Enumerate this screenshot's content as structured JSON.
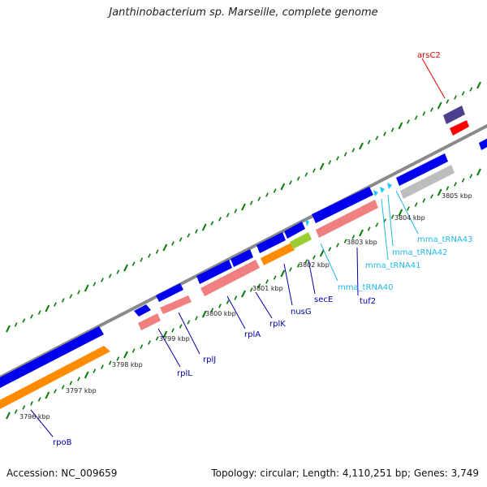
{
  "title": "Janthinobacterium sp. Marseille, complete genome",
  "footer": {
    "accession": "Accession: NC_009659",
    "summary": "Topology: circular; Length: 4,110,251 bp; Genes: 3,749"
  },
  "colors": {
    "cds_forward": "#0000ee",
    "rrna_like": "#f08080",
    "orange": "#ff8c00",
    "gray": "#bdbdbd",
    "lime": "#9acd32",
    "red": "#ff0000",
    "purple": "#4b3f8f",
    "trna": "#1ec8f0",
    "tick": "#0a7a0a",
    "label_blue": "#0000aa",
    "label_cyan": "#22b8e6",
    "label_red": "#dd0000"
  },
  "scale_labels": [
    "3796 kbp",
    "3797 kbp",
    "3798 kbp",
    "3799 kbp",
    "3800 kbp",
    "3801 kbp",
    "3802 kbp",
    "3803 kbp",
    "3804 kbp",
    "3805 kbp"
  ],
  "gene_labels": [
    "rpoB",
    "rplL",
    "rplJ",
    "rplA",
    "rplK",
    "nusG",
    "secE",
    "tuf2",
    "mma_tRNA40",
    "mma_tRNA41",
    "mma_tRNA42",
    "mma_tRNA43",
    "arsC2"
  ]
}
